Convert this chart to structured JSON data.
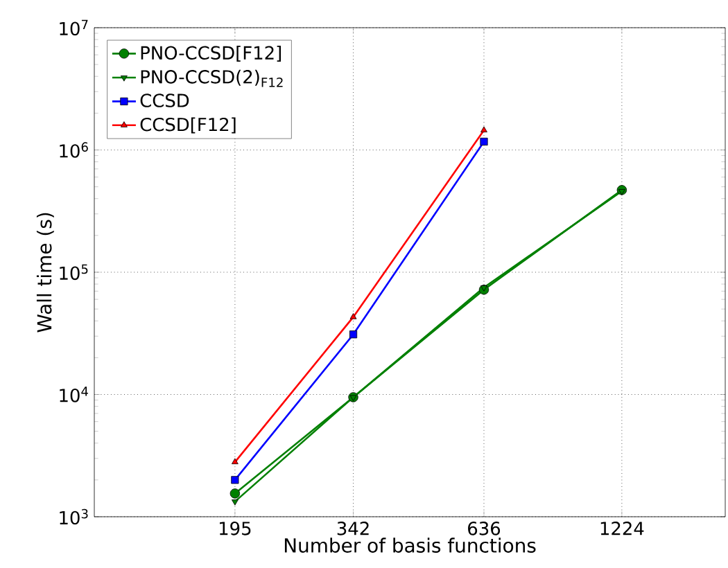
{
  "chart_data": {
    "type": "line",
    "xlabel": "Number of basis functions",
    "ylabel": "Wall time (s)",
    "x": [
      195,
      342,
      636,
      1224
    ],
    "series": [
      {
        "name": "PNO-CCSD[F12]",
        "color": "#008000",
        "marker": "circle",
        "values": [
          1550,
          9500,
          72000,
          470000
        ]
      },
      {
        "name": "PNO-CCSD(2)$_{F12}$",
        "color": "#008000",
        "marker": "triangle_down",
        "values": [
          1330,
          9500,
          75000,
          460000
        ]
      },
      {
        "name": "CCSD",
        "color": "#0000ff",
        "marker": "square",
        "values": [
          2000,
          31000,
          1170000,
          null
        ]
      },
      {
        "name": "CCSD[F12]",
        "color": "#ff0000",
        "marker": "triangle",
        "values": [
          2800,
          43000,
          1450000,
          null
        ]
      }
    ],
    "log": "xy",
    "xlim": [
      100,
      2000
    ],
    "ylim": [
      1000,
      10000000
    ],
    "xticks": [
      195,
      342,
      636,
      1224
    ],
    "yticks": [
      {
        "value": 1000,
        "label": "10$^{3}$"
      },
      {
        "value": 10000,
        "label": "10$^{4}$"
      },
      {
        "value": 100000,
        "label": "10$^{5}$"
      },
      {
        "value": 1000000,
        "label": "10$^{6}$"
      },
      {
        "value": 10000000,
        "label": "10$^{7}$"
      }
    ],
    "grid": true,
    "legend": "top left",
    "line_style": "solid"
  }
}
